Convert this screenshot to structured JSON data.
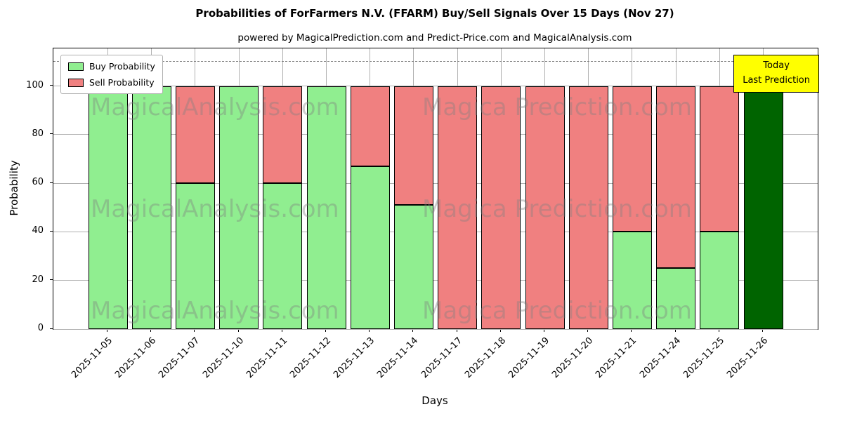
{
  "title": "Probabilities of ForFarmers N.V. (FFARM) Buy/Sell Signals Over 15 Days (Nov 27)",
  "subtitle": "powered by MagicalPrediction.com and Predict-Price.com and MagicalAnalysis.com",
  "legend": {
    "buy_label": "Buy Probability",
    "sell_label": "Sell Probability"
  },
  "annotation": {
    "line1": "Today",
    "line2": "Last Prediction"
  },
  "axes": {
    "xlabel": "Days",
    "ylabel": "Probability",
    "yticks": [
      0,
      20,
      40,
      60,
      80,
      100
    ]
  },
  "colors": {
    "buy": "#90ee90",
    "sell": "#f08080",
    "today": "#006400",
    "annotation_bg": "#ffff00",
    "grid": "#b0b0b0",
    "dashed_line": "#7f7f7f",
    "watermark": "#808080"
  },
  "watermarks": [
    "MagicalAnalysis.com",
    "Magica Prediction.com"
  ],
  "chart_data": {
    "type": "bar",
    "stacked": true,
    "title": "Probabilities of ForFarmers N.V. (FFARM) Buy/Sell Signals Over 15 Days (Nov 27)",
    "xlabel": "Days",
    "ylabel": "Probability",
    "ylim": [
      0,
      115.5
    ],
    "grid": true,
    "legend_position": "upper left",
    "dashed_line_y": 110,
    "today_index": 15,
    "categories": [
      "2025-11-05",
      "2025-11-06",
      "2025-11-07",
      "2025-11-10",
      "2025-11-11",
      "2025-11-12",
      "2025-11-13",
      "2025-11-14",
      "2025-11-17",
      "2025-11-18",
      "2025-11-19",
      "2025-11-20",
      "2025-11-21",
      "2025-11-24",
      "2025-11-25",
      "2025-11-26"
    ],
    "series": [
      {
        "name": "Buy Probability",
        "color": "#90ee90",
        "values": [
          100,
          100,
          60,
          100,
          60,
          100,
          67,
          51,
          0,
          0,
          0,
          0,
          40,
          25,
          40,
          100
        ]
      },
      {
        "name": "Sell Probability",
        "color": "#f08080",
        "values": [
          0,
          0,
          40,
          0,
          40,
          0,
          33,
          49,
          100,
          100,
          100,
          100,
          60,
          75,
          60,
          0
        ]
      }
    ]
  }
}
